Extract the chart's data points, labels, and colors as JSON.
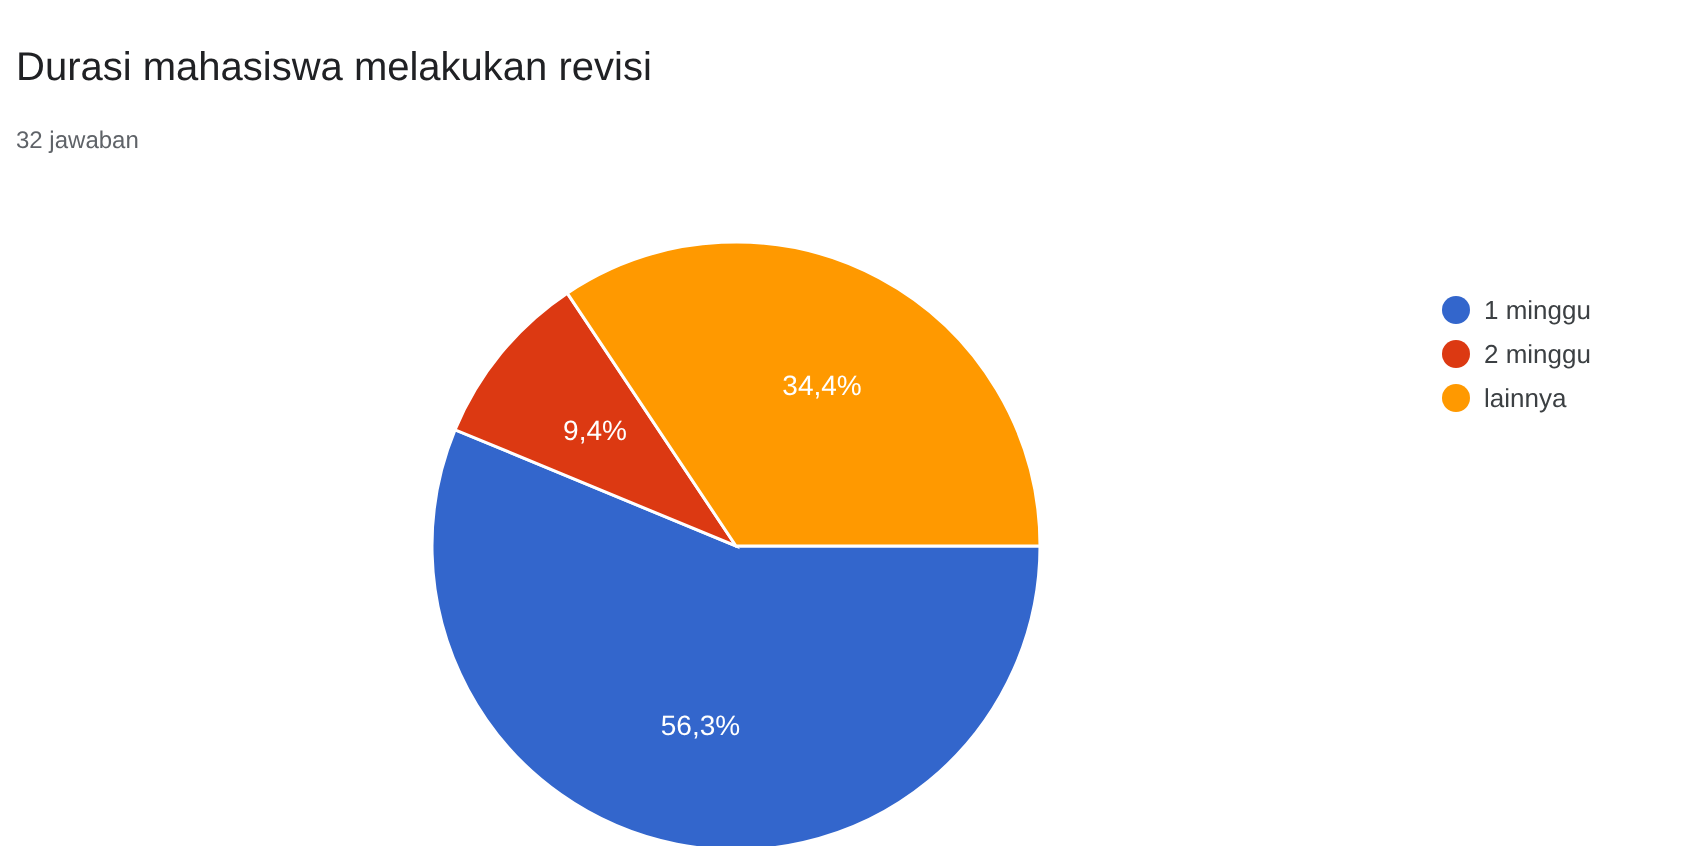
{
  "chart_data": {
    "type": "pie",
    "title": "Durasi mahasiswa melakukan revisi",
    "subtitle": "32 jawaban",
    "categories": [
      "1 minggu",
      "2 minggu",
      "lainnya"
    ],
    "values": [
      56.3,
      9.4,
      34.4
    ],
    "colors": [
      "#3366cc",
      "#dc3912",
      "#ff9900"
    ],
    "value_labels": [
      "56,3%",
      "9,4%",
      "34,4%"
    ],
    "legend": "top right"
  }
}
